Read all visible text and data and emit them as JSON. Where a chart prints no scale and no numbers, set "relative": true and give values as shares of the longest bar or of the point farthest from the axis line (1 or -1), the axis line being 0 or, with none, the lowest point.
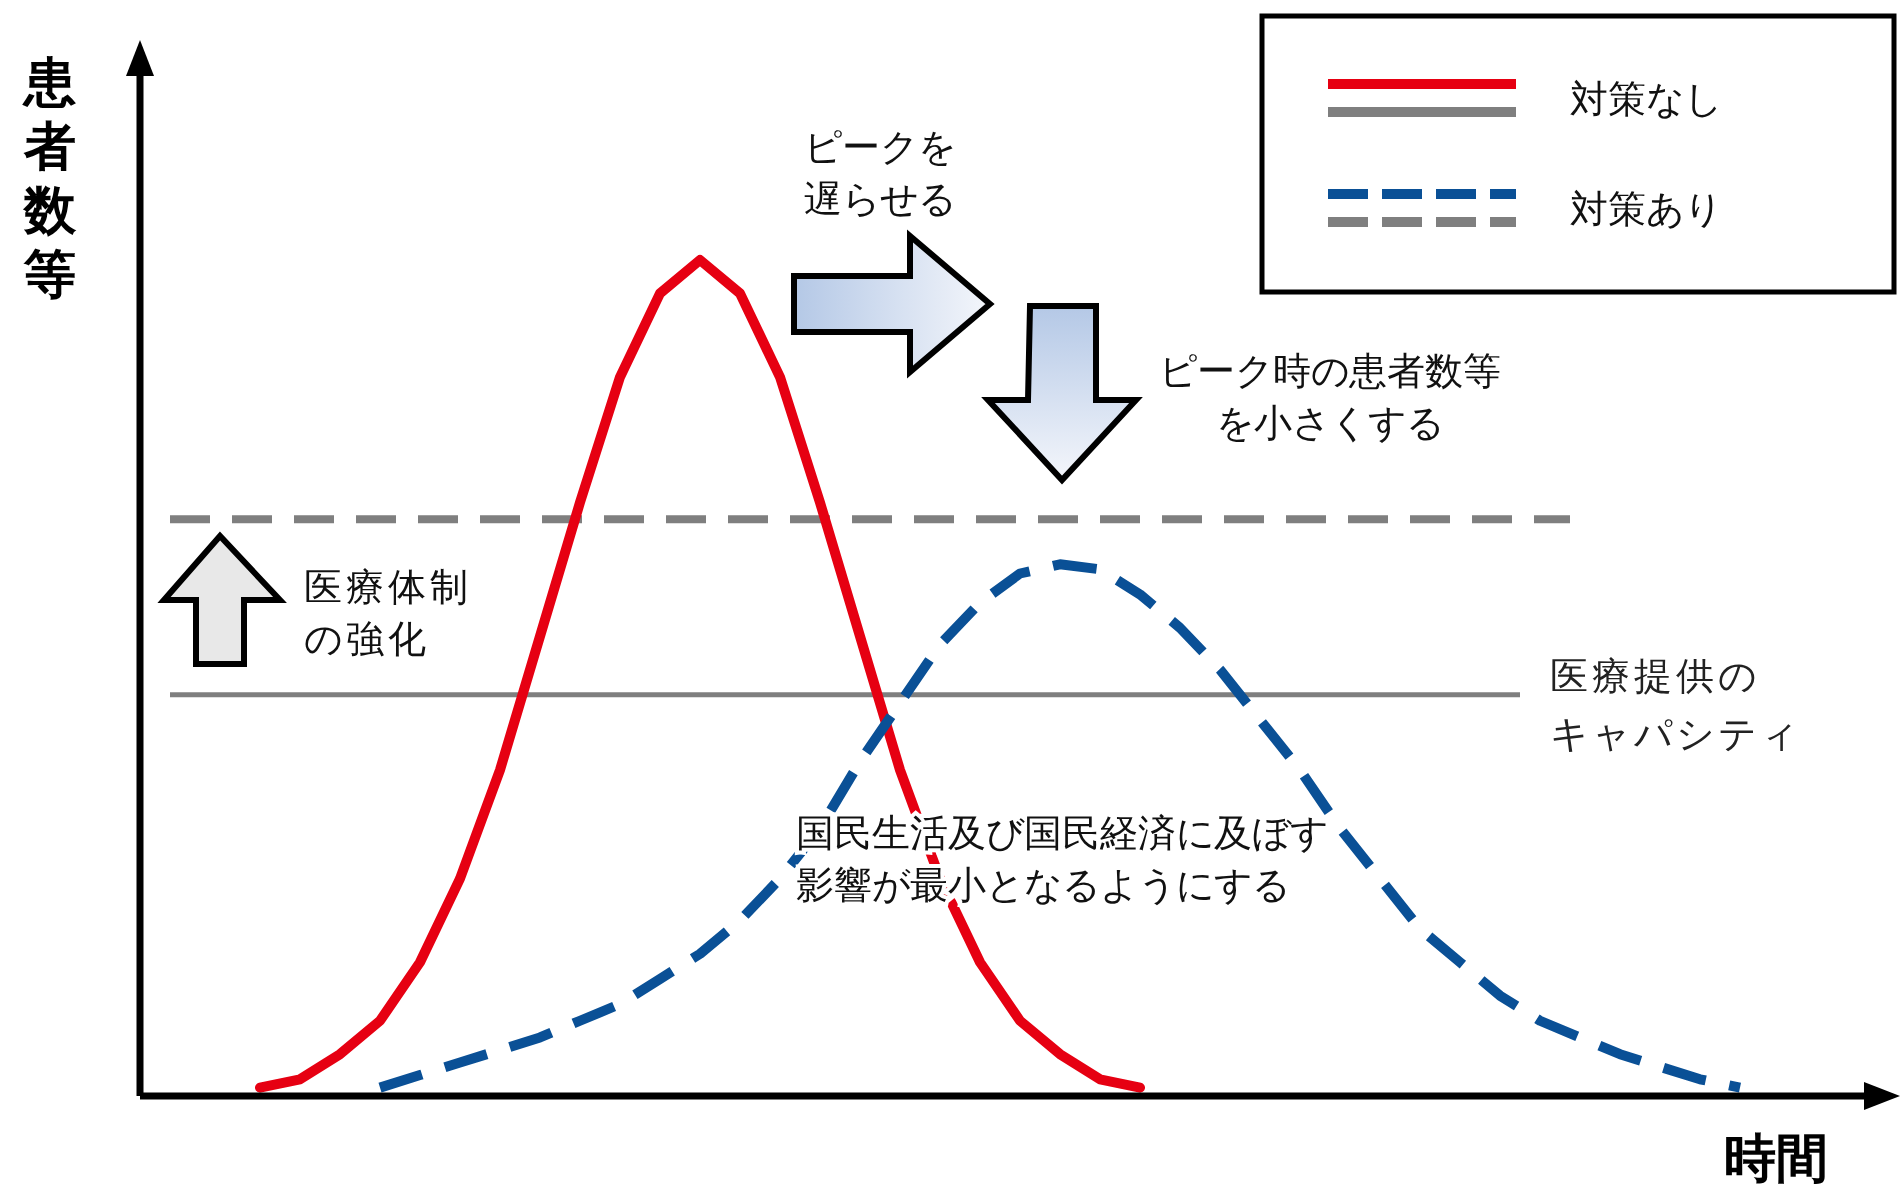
{
  "chart_data": {
    "type": "line",
    "relative": true,
    "ylabel": "患者数等",
    "xlabel": "時間",
    "legend": "top right",
    "categories": [
      null,
      null,
      null,
      null,
      null,
      null,
      null,
      null,
      null,
      null,
      null,
      null,
      null,
      null,
      null,
      null,
      null,
      null,
      null,
      null,
      null,
      null,
      null,
      null,
      null,
      null,
      null,
      null,
      null,
      null,
      null,
      null,
      null,
      null,
      null,
      null,
      null,
      null,
      null
    ],
    "series": [
      {
        "name": "対策なし",
        "color": "#e60012",
        "line_style": "solid",
        "values": [
          0.01,
          0.02,
          0.05,
          0.09,
          0.16,
          0.26,
          0.39,
          0.55,
          0.71,
          0.86,
          0.96,
          1,
          0.96,
          0.86,
          0.71,
          0.55,
          0.39,
          0.26,
          0.16,
          0.09,
          0.05,
          0.02,
          0.01,
          null,
          null,
          null,
          null,
          null,
          null,
          null,
          null,
          null,
          null,
          null,
          null,
          null,
          null,
          null,
          null
        ]
      },
      {
        "name": "対策あり",
        "color": "#0a5096",
        "line_style": "dashed",
        "values": [
          null,
          null,
          null,
          0.01,
          0.025,
          0.04,
          0.055,
          0.07,
          0.09,
          0.11,
          0.14,
          0.17,
          0.21,
          0.26,
          0.32,
          0.4,
          0.47,
          0.54,
          0.59,
          0.625,
          0.636,
          0.63,
          0.6,
          0.56,
          0.51,
          0.45,
          0.39,
          0.32,
          0.26,
          0.2,
          0.16,
          0.12,
          0.09,
          0.07,
          0.05,
          0.035,
          0.02,
          0.01,
          null
        ]
      }
    ],
    "ref_lines": [
      {
        "axis": "y",
        "value": 0.48,
        "label": "医療提供のキャパシティ",
        "color": "#7f7f7f",
        "line_style": "solid"
      },
      {
        "axis": "y",
        "value": 0.69,
        "color": "#7f7f7f",
        "line_style": "dashed"
      }
    ],
    "annotations": [
      "ピークを遅らせる",
      "ピーク時の患者数等を小さくする",
      "医療体制の強化",
      "国民生活及び国民経済に及ぼす影響が最小となるようにする"
    ]
  }
}
